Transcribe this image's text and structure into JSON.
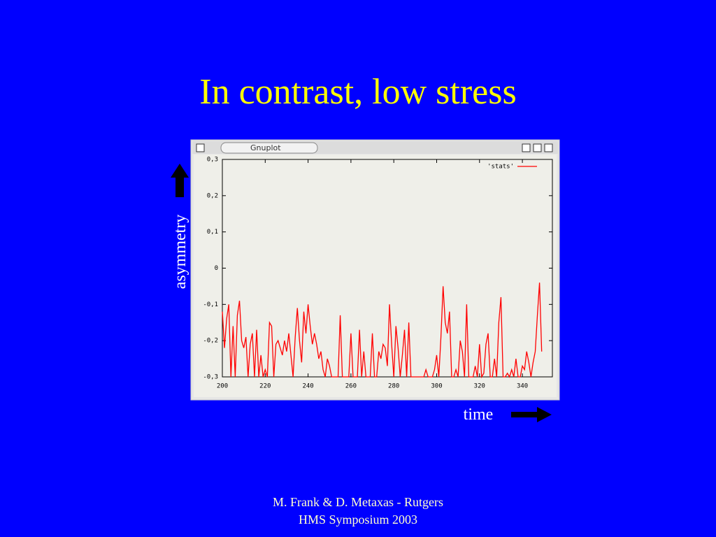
{
  "slide": {
    "title": "In contrast, low stress",
    "y_annotation": "asymmetry",
    "x_annotation": "time",
    "window_title": "Gnuplot",
    "footer": [
      "M. Frank & D. Metaxas - Rutgers",
      "HMS Symposium 2003"
    ]
  },
  "chart_data": {
    "type": "line",
    "grid": false,
    "legend": "top-right",
    "xlim": [
      200,
      354
    ],
    "ylim": [
      -0.3,
      0.3
    ],
    "xticks": [
      200,
      220,
      240,
      260,
      280,
      300,
      320,
      340
    ],
    "yticks": [
      {
        "value": 0.3,
        "label": "0,3"
      },
      {
        "value": 0.2,
        "label": "0,2"
      },
      {
        "value": 0.1,
        "label": "0,1"
      },
      0,
      {
        "value": -0.1,
        "label": "-0,1"
      },
      {
        "value": -0.2,
        "label": "-0,2"
      },
      {
        "value": -0.3,
        "label": "-0,3"
      }
    ],
    "x": [
      200,
      201,
      202,
      203,
      204,
      205,
      206,
      207,
      208,
      209,
      210,
      211,
      212,
      213,
      214,
      215,
      216,
      217,
      218,
      219,
      220,
      221,
      222,
      223,
      224,
      225,
      226,
      227,
      228,
      229,
      230,
      231,
      232,
      233,
      234,
      235,
      236,
      237,
      238,
      239,
      240,
      241,
      242,
      243,
      244,
      245,
      246,
      247,
      248,
      249,
      250,
      251,
      252,
      253,
      254,
      255,
      256,
      257,
      258,
      259,
      260,
      261,
      262,
      263,
      264,
      265,
      266,
      267,
      268,
      269,
      270,
      271,
      272,
      273,
      274,
      275,
      276,
      277,
      278,
      279,
      280,
      281,
      282,
      283,
      284,
      285,
      286,
      287,
      288,
      289,
      290,
      291,
      292,
      293,
      294,
      295,
      296,
      297,
      298,
      299,
      300,
      301,
      302,
      303,
      304,
      305,
      306,
      307,
      308,
      309,
      310,
      311,
      312,
      313,
      314,
      315,
      316,
      317,
      318,
      319,
      320,
      321,
      322,
      323,
      324,
      325,
      326,
      327,
      328,
      329,
      330,
      331,
      332,
      333,
      334,
      335,
      336,
      337,
      338,
      339,
      340,
      341,
      342,
      343,
      344,
      345,
      346,
      347,
      348,
      349
    ],
    "series": [
      {
        "name": "'stats'",
        "color": "#ff0000",
        "values": [
          -0.12,
          -0.22,
          -0.14,
          -0.1,
          -0.3,
          -0.16,
          -0.3,
          -0.13,
          -0.09,
          -0.2,
          -0.22,
          -0.19,
          -0.3,
          -0.21,
          -0.18,
          -0.3,
          -0.17,
          -0.3,
          -0.24,
          -0.3,
          -0.28,
          -0.3,
          -0.15,
          -0.16,
          -0.3,
          -0.21,
          -0.2,
          -0.22,
          -0.24,
          -0.2,
          -0.23,
          -0.18,
          -0.24,
          -0.3,
          -0.19,
          -0.11,
          -0.2,
          -0.26,
          -0.12,
          -0.18,
          -0.1,
          -0.16,
          -0.21,
          -0.18,
          -0.21,
          -0.25,
          -0.23,
          -0.28,
          -0.3,
          -0.25,
          -0.27,
          -0.3,
          -0.3,
          -0.3,
          -0.3,
          -0.13,
          -0.3,
          -0.3,
          -0.3,
          -0.3,
          -0.18,
          -0.3,
          -0.3,
          -0.3,
          -0.17,
          -0.3,
          -0.23,
          -0.3,
          -0.3,
          -0.3,
          -0.18,
          -0.3,
          -0.3,
          -0.23,
          -0.25,
          -0.21,
          -0.22,
          -0.27,
          -0.1,
          -0.21,
          -0.3,
          -0.16,
          -0.22,
          -0.3,
          -0.24,
          -0.17,
          -0.3,
          -0.15,
          -0.3,
          -0.3,
          -0.3,
          -0.3,
          -0.3,
          -0.3,
          -0.3,
          -0.28,
          -0.3,
          -0.3,
          -0.3,
          -0.28,
          -0.24,
          -0.3,
          -0.19,
          -0.05,
          -0.15,
          -0.18,
          -0.12,
          -0.3,
          -0.3,
          -0.28,
          -0.3,
          -0.2,
          -0.23,
          -0.3,
          -0.1,
          -0.3,
          -0.3,
          -0.3,
          -0.27,
          -0.3,
          -0.21,
          -0.3,
          -0.29,
          -0.21,
          -0.18,
          -0.3,
          -0.3,
          -0.25,
          -0.3,
          -0.15,
          -0.08,
          -0.3,
          -0.3,
          -0.29,
          -0.3,
          -0.28,
          -0.3,
          -0.25,
          -0.3,
          -0.3,
          -0.27,
          -0.28,
          -0.23,
          -0.26,
          -0.3,
          -0.26,
          -0.23,
          -0.13,
          -0.04,
          -0.23
        ]
      }
    ]
  }
}
